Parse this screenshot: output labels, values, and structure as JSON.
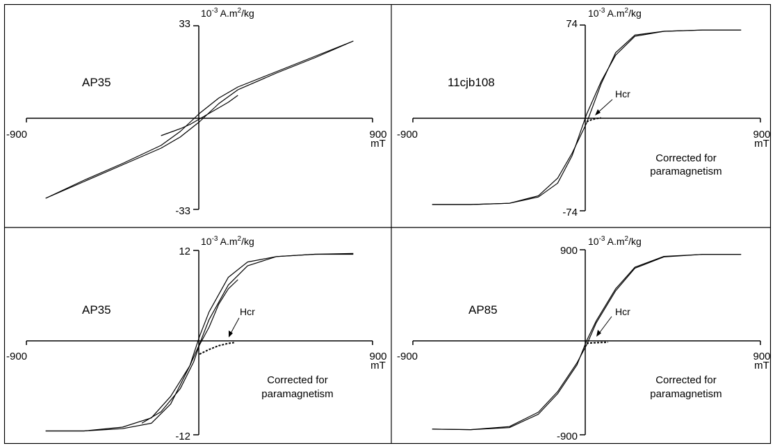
{
  "chart_data": [
    {
      "type": "line",
      "sample": "AP35",
      "y_unit": "10-3 A.m2/kg",
      "x_unit": "mT",
      "xlim": [
        -900,
        900
      ],
      "ylim": [
        -33,
        33
      ],
      "x_tick_labels": [
        "-900",
        "900"
      ],
      "y_tick_labels": [
        "33",
        "-33"
      ],
      "note": "",
      "series": [
        {
          "x": [
            -800,
            -600,
            -400,
            -200,
            -100,
            0,
            100,
            200,
            400,
            600,
            800
          ],
          "y": [
            -29,
            -23,
            -17,
            -11,
            -7,
            -1.5,
            5,
            10,
            16,
            21.5,
            27.5
          ]
        },
        {
          "x": [
            -800,
            -600,
            -400,
            -200,
            -100,
            0,
            100,
            200,
            400,
            600,
            800
          ],
          "y": [
            -29,
            -22.5,
            -16.5,
            -10,
            -5,
            1.5,
            7,
            11,
            16.5,
            22,
            27.5
          ]
        },
        {
          "x": [
            -200,
            -100,
            -50,
            0,
            50,
            100,
            150,
            200
          ],
          "y": [
            -6.5,
            -4,
            -2.5,
            -0.5,
            1.5,
            3.5,
            5.5,
            8
          ]
        }
      ],
      "hcr_curve": null
    },
    {
      "type": "line",
      "sample": "11cjb108",
      "y_unit": "10-3 A.m2/kg",
      "x_unit": "mT",
      "xlim": [
        -900,
        900
      ],
      "ylim": [
        -74,
        74
      ],
      "x_tick_labels": [
        "-900",
        "900"
      ],
      "y_tick_labels": [
        "74",
        "-74"
      ],
      "note": "Corrected for paramagnetism",
      "hcr_label": "Hcr",
      "series": [
        {
          "x": [
            -800,
            -600,
            -400,
            -250,
            -150,
            -75,
            0,
            75,
            150,
            250,
            400,
            600,
            800
          ],
          "y": [
            -69,
            -69,
            -68,
            -62,
            -48,
            -28,
            -4,
            27,
            52,
            66,
            69,
            70,
            70
          ]
        },
        {
          "x": [
            -800,
            -600,
            -400,
            -250,
            -150,
            -75,
            0,
            75,
            150,
            250,
            400,
            600,
            800
          ],
          "y": [
            -69,
            -69,
            -68,
            -63,
            -52,
            -30,
            3,
            29,
            50,
            65,
            69,
            70,
            70
          ]
        }
      ],
      "hcr_curve": {
        "x": [
          0,
          25,
          50,
          75
        ],
        "y": [
          -3,
          -1.5,
          -0.5,
          0
        ]
      }
    },
    {
      "type": "line",
      "sample": "AP35",
      "y_unit": "10-3 A.m2/kg",
      "x_unit": "mT",
      "xlim": [
        -900,
        900
      ],
      "ylim": [
        -12,
        12
      ],
      "x_tick_labels": [
        "-900",
        "900"
      ],
      "y_tick_labels": [
        "12",
        "-12"
      ],
      "note": "Corrected for paramagnetism",
      "hcr_label": "Hcr",
      "series": [
        {
          "x": [
            -800,
            -600,
            -400,
            -250,
            -150,
            -50,
            0,
            50,
            150,
            250,
            400,
            600,
            800
          ],
          "y": [
            -11.5,
            -11.5,
            -11,
            -9.8,
            -7,
            -3,
            -0.2,
            3,
            7.5,
            10,
            11.2,
            11.5,
            11.5
          ]
        },
        {
          "x": [
            -800,
            -600,
            -400,
            -250,
            -150,
            -50,
            0,
            50,
            150,
            250,
            400,
            600,
            800
          ],
          "y": [
            -11.5,
            -11.5,
            -11.2,
            -10.5,
            -8,
            -3,
            0.8,
            4,
            8.5,
            10.5,
            11.2,
            11.5,
            11.6
          ]
        },
        {
          "x": [
            -300,
            -200,
            -100,
            -30,
            0,
            50,
            100,
            150,
            200
          ],
          "y": [
            -10.5,
            -9,
            -6,
            -2.5,
            -0.3,
            2,
            5,
            7,
            8.2
          ]
        }
      ],
      "hcr_curve": {
        "x": [
          0,
          50,
          100,
          150,
          180
        ],
        "y": [
          -1.5,
          -0.9,
          -0.4,
          -0.1,
          0
        ]
      }
    },
    {
      "type": "line",
      "sample": "AP85",
      "y_unit": "10-3 A.m2/kg",
      "x_unit": "mT",
      "xlim": [
        -900,
        900
      ],
      "ylim": [
        -900,
        900
      ],
      "x_tick_labels": [
        "-900",
        "900"
      ],
      "y_tick_labels": [
        "900",
        "-900"
      ],
      "note": "Corrected for paramagnetism",
      "hcr_label": "Hcr",
      "series": [
        {
          "x": [
            -800,
            -600,
            -400,
            -250,
            -150,
            -50,
            0,
            50,
            150,
            250,
            400,
            600,
            800
          ],
          "y": [
            -845,
            -850,
            -820,
            -680,
            -480,
            -200,
            -25,
            190,
            500,
            720,
            830,
            855,
            855
          ]
        },
        {
          "x": [
            -800,
            -600,
            -400,
            -250,
            -150,
            -50,
            0,
            50,
            150,
            250,
            400,
            600,
            800
          ],
          "y": [
            -845,
            -850,
            -830,
            -700,
            -500,
            -220,
            15,
            210,
            520,
            730,
            835,
            855,
            855
          ]
        }
      ],
      "hcr_curve": {
        "x": [
          0,
          40,
          80,
          110
        ],
        "y": [
          -10,
          -5,
          -2,
          0
        ]
      }
    }
  ]
}
